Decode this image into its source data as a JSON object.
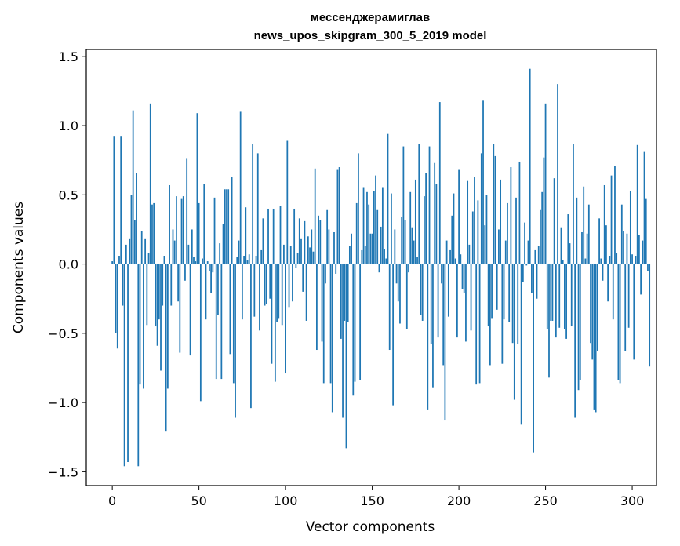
{
  "chart_data": {
    "type": "bar",
    "title": "мессенджерамиглав",
    "subtitle": "news_upos_skipgram_300_5_2019 model",
    "xlabel": "Vector components",
    "ylabel": "Components values",
    "xlim": [
      -15,
      314
    ],
    "ylim": [
      -1.6,
      1.55
    ],
    "xticks": [
      0,
      50,
      100,
      150,
      200,
      250,
      300
    ],
    "xtick_labels": [
      "0",
      "50",
      "100",
      "150",
      "200",
      "250",
      "300"
    ],
    "yticks": [
      -1.5,
      -1.0,
      -0.5,
      0.0,
      0.5,
      1.0,
      1.5
    ],
    "ytick_labels": [
      "−1.5",
      "−1.0",
      "−0.5",
      "0.0",
      "0.5",
      "1.0",
      "1.5"
    ],
    "grid": false,
    "bar_color": "#1f77b4",
    "values": [
      0.02,
      0.92,
      -0.5,
      -0.61,
      0.06,
      0.92,
      -0.3,
      -1.46,
      0.14,
      -1.43,
      0.18,
      0.5,
      1.11,
      0.32,
      0.66,
      -1.46,
      -0.87,
      0.24,
      -0.9,
      0.18,
      -0.44,
      0.08,
      1.16,
      0.43,
      0.44,
      -0.45,
      -0.59,
      -0.4,
      -0.77,
      -0.3,
      0.06,
      -1.21,
      -0.9,
      0.57,
      -0.3,
      0.25,
      0.17,
      0.49,
      -0.27,
      -0.64,
      0.47,
      0.49,
      -0.12,
      0.76,
      0.14,
      -0.66,
      0.25,
      0.05,
      0.02,
      1.09,
      0.44,
      -0.99,
      0.04,
      0.58,
      -0.4,
      0.02,
      -0.05,
      -0.21,
      -0.06,
      0.48,
      -0.83,
      -0.37,
      0.15,
      -0.83,
      0.29,
      0.54,
      0.54,
      0.54,
      -0.65,
      0.63,
      -0.86,
      -1.11,
      0.05,
      0.17,
      1.1,
      -0.4,
      0.06,
      0.41,
      0.03,
      0.07,
      -1.04,
      0.87,
      -0.38,
      0.06,
      0.8,
      -0.48,
      0.1,
      0.33,
      -0.3,
      -0.29,
      0.4,
      -0.25,
      -0.72,
      0.4,
      -0.85,
      -0.42,
      -0.39,
      0.42,
      -0.44,
      0.14,
      -0.79,
      0.89,
      -0.31,
      0.13,
      -0.27,
      0.4,
      -0.03,
      0.08,
      0.33,
      0.18,
      -0.2,
      0.31,
      -0.41,
      0.2,
      0.12,
      0.25,
      0.09,
      0.69,
      -0.62,
      0.35,
      0.32,
      -0.56,
      -0.86,
      -0.14,
      0.39,
      0.25,
      -0.86,
      -1.07,
      0.23,
      -0.07,
      0.68,
      0.7,
      -0.54,
      -1.11,
      -0.41,
      -1.33,
      -0.42,
      0.13,
      0.22,
      -0.95,
      -0.85,
      0.44,
      0.8,
      -0.84,
      0.1,
      0.55,
      0.13,
      0.52,
      0.43,
      0.22,
      0.22,
      0.53,
      0.64,
      0.39,
      -0.06,
      0.27,
      0.55,
      0.11,
      0.04,
      0.94,
      -0.62,
      0.51,
      -1.02,
      0.25,
      -0.14,
      -0.27,
      -0.43,
      0.34,
      0.85,
      0.32,
      -0.47,
      -0.06,
      0.52,
      0.26,
      0.17,
      0.61,
      0.05,
      0.87,
      -0.37,
      -0.41,
      0.49,
      0.66,
      -1.05,
      0.85,
      -0.58,
      -0.89,
      0.73,
      0.58,
      -0.53,
      1.17,
      -0.14,
      -0.73,
      -1.13,
      0.17,
      -0.38,
      0.1,
      0.35,
      0.51,
      0.04,
      -0.53,
      0.68,
      0.07,
      -0.18,
      -0.21,
      -0.56,
      0.6,
      0.14,
      -0.48,
      0.38,
      0.63,
      -0.87,
      0.46,
      -0.86,
      0.8,
      1.18,
      0.28,
      0.5,
      -0.45,
      -0.73,
      -0.39,
      0.87,
      0.78,
      -0.33,
      0.25,
      0.61,
      -0.72,
      -0.4,
      0.17,
      0.44,
      -0.42,
      0.7,
      -0.57,
      -0.98,
      0.48,
      -0.58,
      0.74,
      -1.16,
      -0.13,
      0.3,
      -0.01,
      0.17,
      1.41,
      -0.21,
      -1.36,
      0.1,
      -0.25,
      0.13,
      0.39,
      0.52,
      0.77,
      1.16,
      -0.47,
      -0.82,
      -0.41,
      -0.41,
      0.62,
      -0.53,
      1.3,
      -0.46,
      0.26,
      0.03,
      -0.47,
      -0.54,
      0.36,
      0.15,
      -0.45,
      0.87,
      -1.11,
      0.48,
      -0.91,
      -0.84,
      0.23,
      0.56,
      0.04,
      0.22,
      0.43,
      -0.57,
      -0.69,
      -1.05,
      -1.07,
      -0.63,
      0.33,
      0.04,
      -0.12,
      0.57,
      0.28,
      -0.27,
      0.06,
      0.64,
      -0.4,
      0.71,
      0.08,
      -0.84,
      -0.86,
      0.43,
      0.24,
      -0.63,
      0.22,
      -0.46,
      0.53,
      0.07,
      -0.69,
      0.06,
      0.86,
      0.21,
      -0.22,
      0.17,
      0.81,
      0.47,
      -0.05,
      -0.74
    ]
  }
}
